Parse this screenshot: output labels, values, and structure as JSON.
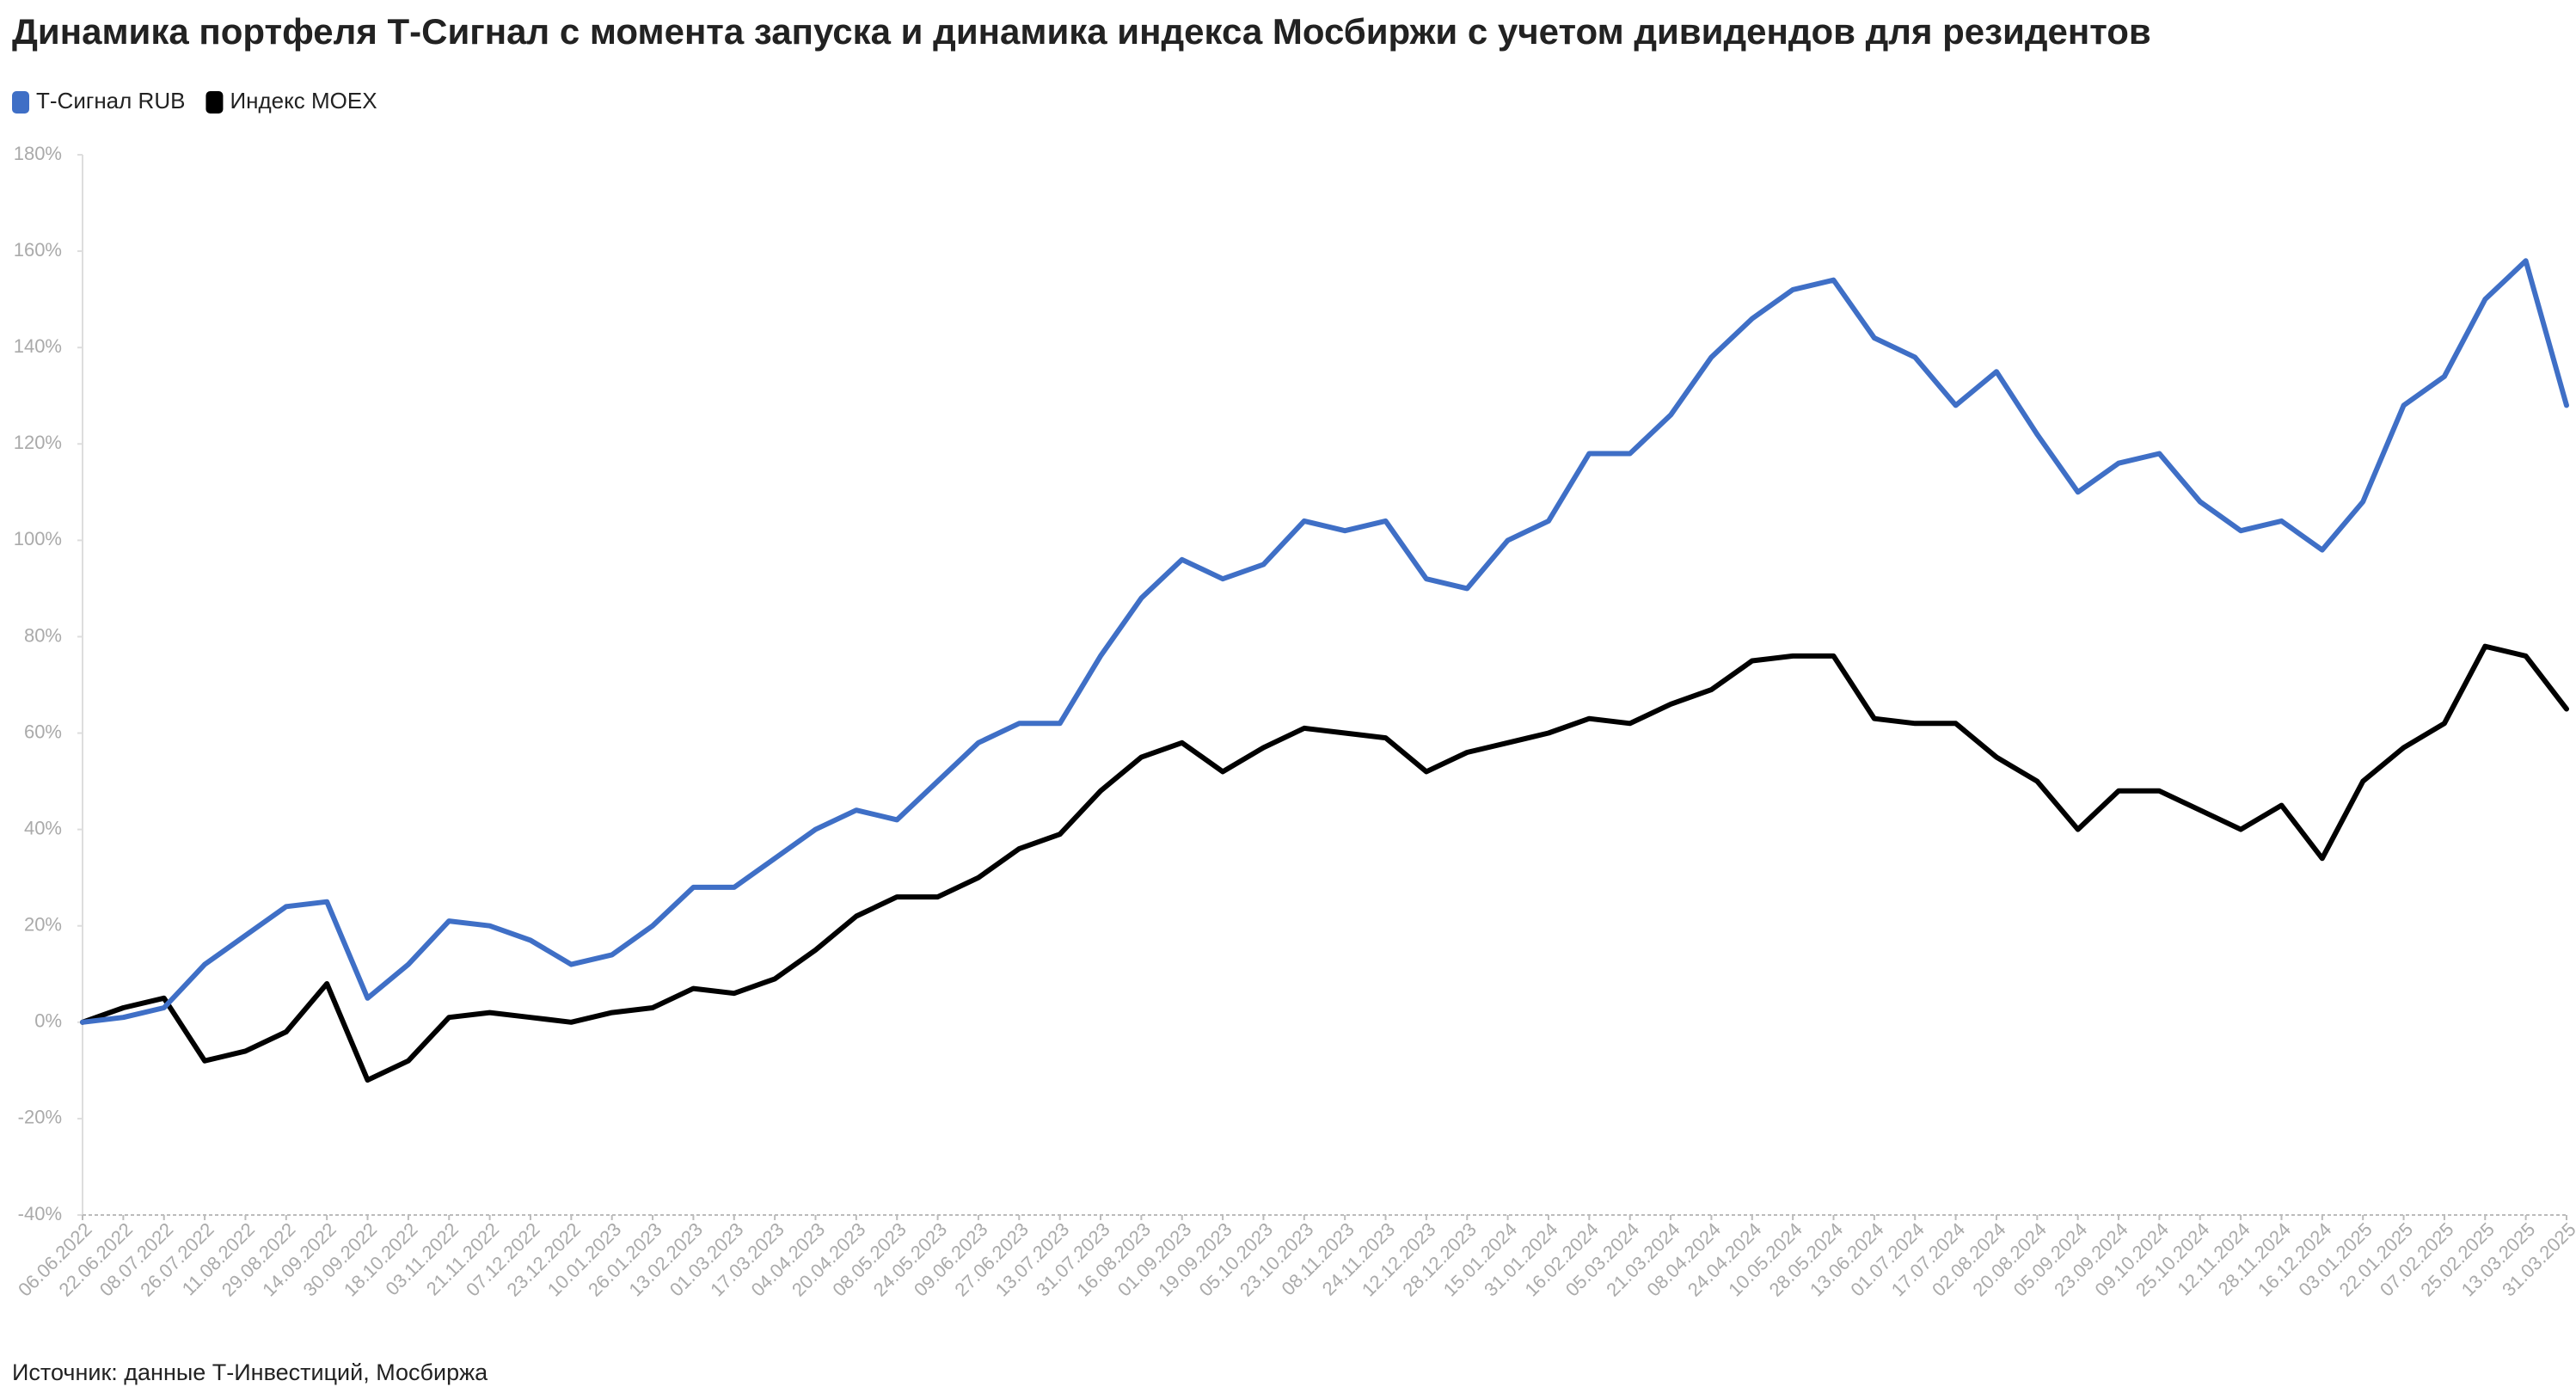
{
  "chart_data": {
    "type": "line",
    "title": "Динамика портфеля Т-Сигнал с момента запуска и динамика индекса Мосбиржи с учетом дивидендов для резидентов",
    "source": "Источник: данные Т-Инвестиций, Мосбиржа",
    "categories": [
      "06.06.2022",
      "22.06.2022",
      "08.07.2022",
      "26.07.2022",
      "11.08.2022",
      "29.08.2022",
      "14.09.2022",
      "30.09.2022",
      "18.10.2022",
      "03.11.2022",
      "21.11.2022",
      "07.12.2022",
      "23.12.2022",
      "10.01.2023",
      "26.01.2023",
      "13.02.2023",
      "01.03.2023",
      "17.03.2023",
      "04.04.2023",
      "20.04.2023",
      "08.05.2023",
      "24.05.2023",
      "09.06.2023",
      "27.06.2023",
      "13.07.2023",
      "31.07.2023",
      "16.08.2023",
      "01.09.2023",
      "19.09.2023",
      "05.10.2023",
      "23.10.2023",
      "08.11.2023",
      "24.11.2023",
      "12.12.2023",
      "28.12.2023",
      "15.01.2024",
      "31.01.2024",
      "16.02.2024",
      "05.03.2024",
      "21.03.2024",
      "08.04.2024",
      "24.04.2024",
      "10.05.2024",
      "28.05.2024",
      "13.06.2024",
      "01.07.2024",
      "17.07.2024",
      "02.08.2024",
      "20.08.2024",
      "05.09.2024",
      "23.09.2024",
      "09.10.2024",
      "25.10.2024",
      "12.11.2024",
      "28.11.2024",
      "16.12.2024",
      "03.01.2025",
      "22.01.2025",
      "07.02.2025",
      "25.02.2025",
      "13.03.2025",
      "31.03.2025"
    ],
    "series": [
      {
        "name": "Т-Сигнал RUB",
        "color": "#3f6fc6",
        "values": [
          0,
          1,
          3,
          12,
          18,
          24,
          25,
          5,
          12,
          21,
          20,
          17,
          12,
          14,
          20,
          28,
          28,
          34,
          40,
          44,
          42,
          50,
          58,
          62,
          62,
          76,
          88,
          96,
          92,
          95,
          104,
          102,
          104,
          92,
          90,
          100,
          104,
          118,
          118,
          126,
          138,
          146,
          152,
          154,
          142,
          138,
          128,
          135,
          122,
          110,
          116,
          118,
          108,
          102,
          104,
          98,
          108,
          128,
          134,
          150,
          158,
          128
        ]
      },
      {
        "name": "Индекс MOEX",
        "color": "#000000",
        "values": [
          0,
          3,
          5,
          -8,
          -6,
          -2,
          8,
          -12,
          -8,
          1,
          2,
          1,
          0,
          2,
          3,
          7,
          6,
          9,
          15,
          22,
          26,
          26,
          30,
          36,
          39,
          48,
          55,
          58,
          52,
          57,
          61,
          60,
          59,
          52,
          56,
          58,
          60,
          63,
          62,
          66,
          69,
          75,
          76,
          76,
          63,
          62,
          62,
          55,
          50,
          40,
          48,
          48,
          44,
          40,
          45,
          34,
          50,
          57,
          62,
          78,
          76,
          65
        ]
      }
    ],
    "ylim": [
      -40,
      180
    ],
    "yticks": [
      {
        "value": -40,
        "label": "-40%"
      },
      {
        "value": -20,
        "label": "-20%"
      },
      {
        "value": 0,
        "label": "0%"
      },
      {
        "value": 20,
        "label": "20%"
      },
      {
        "value": 40,
        "label": "40%"
      },
      {
        "value": 60,
        "label": "60%"
      },
      {
        "value": 80,
        "label": "80%"
      },
      {
        "value": 100,
        "label": "100%"
      },
      {
        "value": 120,
        "label": "120%"
      },
      {
        "value": 140,
        "label": "140%"
      },
      {
        "value": 160,
        "label": "160%"
      },
      {
        "value": 180,
        "label": "180%"
      }
    ]
  }
}
